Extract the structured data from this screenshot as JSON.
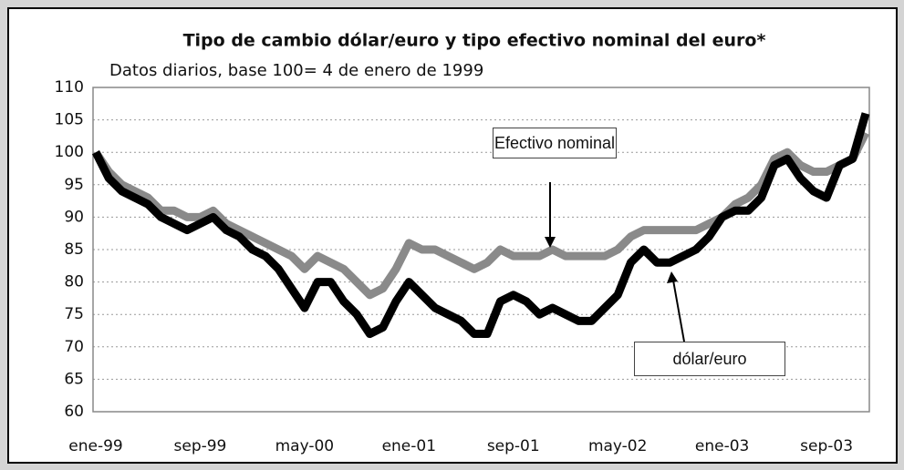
{
  "chart_data": {
    "type": "line",
    "title": "Tipo de cambio dólar/euro y tipo efectivo nominal del euro*",
    "subtitle": "Datos diarios, base 100= 4 de enero de 1999",
    "categories": [
      "ene-99",
      null,
      null,
      null,
      null,
      null,
      null,
      null,
      "sep-99",
      null,
      null,
      null,
      null,
      null,
      null,
      null,
      "may-00",
      null,
      null,
      null,
      null,
      null,
      null,
      null,
      "ene-01",
      null,
      null,
      null,
      null,
      null,
      null,
      null,
      "sep-01",
      null,
      null,
      null,
      null,
      null,
      null,
      null,
      "may-02",
      null,
      null,
      null,
      null,
      null,
      null,
      null,
      "ene-03",
      null,
      null,
      null,
      null,
      null,
      null,
      null,
      "sep-03",
      null,
      null,
      null
    ],
    "series": [
      {
        "name": "Efectivo nominal",
        "color": "#8a8a8a",
        "values": [
          100,
          97,
          95,
          94,
          93,
          91,
          91,
          90,
          90,
          91,
          89,
          88,
          87,
          86,
          85,
          84,
          82,
          84,
          83,
          82,
          80,
          78,
          79,
          82,
          86,
          85,
          85,
          84,
          83,
          82,
          83,
          85,
          84,
          84,
          84,
          85,
          84,
          84,
          84,
          84,
          85,
          87,
          88,
          88,
          88,
          88,
          88,
          89,
          90,
          92,
          93,
          95,
          99,
          100,
          98,
          97,
          97,
          98,
          99,
          103
        ]
      },
      {
        "name": "dólar/euro",
        "color": "#000000",
        "values": [
          100,
          96,
          94,
          93,
          92,
          90,
          89,
          88,
          89,
          90,
          88,
          87,
          85,
          84,
          82,
          79,
          76,
          80,
          80,
          77,
          75,
          72,
          73,
          77,
          80,
          78,
          76,
          75,
          74,
          72,
          72,
          77,
          78,
          77,
          75,
          76,
          75,
          74,
          74,
          76,
          78,
          83,
          85,
          83,
          83,
          84,
          85,
          87,
          90,
          91,
          91,
          93,
          98,
          99,
          96,
          94,
          93,
          98,
          99,
          106
        ]
      }
    ],
    "ylim": [
      60,
      110
    ],
    "yticks": [
      60,
      65,
      70,
      75,
      80,
      85,
      90,
      95,
      100,
      105,
      110
    ],
    "grid": true
  }
}
